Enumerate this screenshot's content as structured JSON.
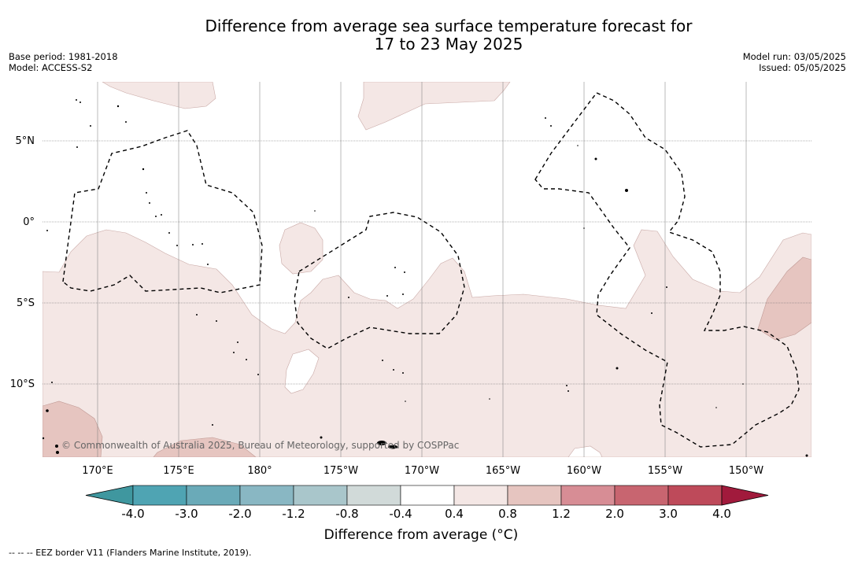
{
  "title_line1": "Difference from average sea surface temperature forecast for",
  "title_line2": "17 to 23 May 2025",
  "base_period": "Base period: 1981-2018",
  "model": "Model: ACCESS-S2",
  "model_run": "Model run: 03/05/2025",
  "issued": "Issued: 05/05/2025",
  "lat_labels": [
    "5°N",
    "0°",
    "5°S",
    "10°S"
  ],
  "lon_labels": [
    "170°E",
    "175°E",
    "180°",
    "175°W",
    "170°W",
    "165°W",
    "160°W",
    "155°W",
    "150°W"
  ],
  "copyright": "© Commonwealth of Australia 2025, Bureau of Meteorology, supported by COSPPac",
  "colorbar": {
    "ticks": [
      "-4.0",
      "-3.0",
      "-2.0",
      "-1.2",
      "-0.8",
      "-0.4",
      "0.4",
      "0.8",
      "1.2",
      "2.0",
      "3.0",
      "4.0"
    ],
    "colors": [
      "#3f979f",
      "#4fa4b3",
      "#6aaab8",
      "#89b7c3",
      "#a9c6cb",
      "#d1dad9",
      "#ffffff",
      "#f4e7e5",
      "#e6c5c0",
      "#d78d95",
      "#c86570",
      "#be4a5a",
      "#a11a3c"
    ],
    "title": "Difference from average (°C)"
  },
  "footer": "--  --  -- EEZ border V11 (Flanders Marine Institute, 2019)."
}
